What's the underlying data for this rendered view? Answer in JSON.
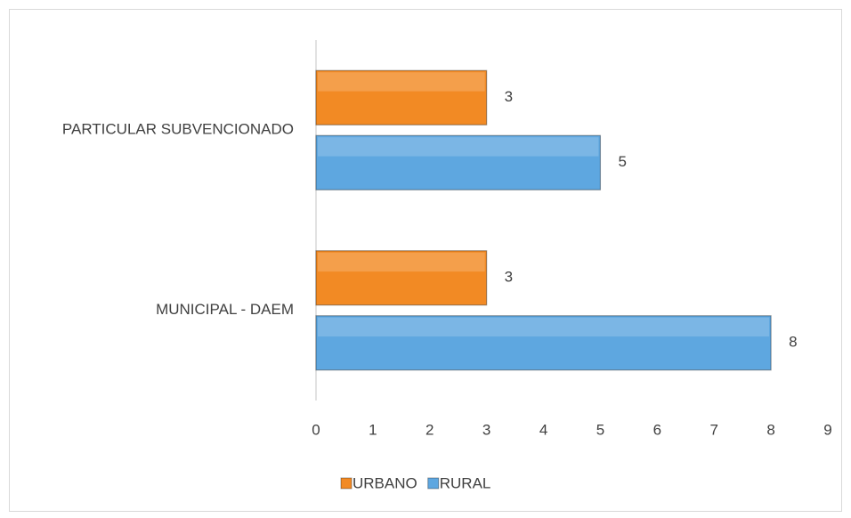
{
  "chart_data": {
    "type": "bar",
    "orientation": "horizontal",
    "categories": [
      "MUNICIPAL - DAEM",
      "PARTICULAR SUBVENCIONADO"
    ],
    "series": [
      {
        "name": "URBANO",
        "color": "#f28a24",
        "values": [
          3,
          3
        ]
      },
      {
        "name": "RURAL",
        "color": "#5ea7e0",
        "values": [
          8,
          5
        ]
      }
    ],
    "xlim": [
      0,
      9
    ],
    "xticks": [
      0,
      1,
      2,
      3,
      4,
      5,
      6,
      7,
      8,
      9
    ],
    "legend": "bottom",
    "grid": false
  }
}
